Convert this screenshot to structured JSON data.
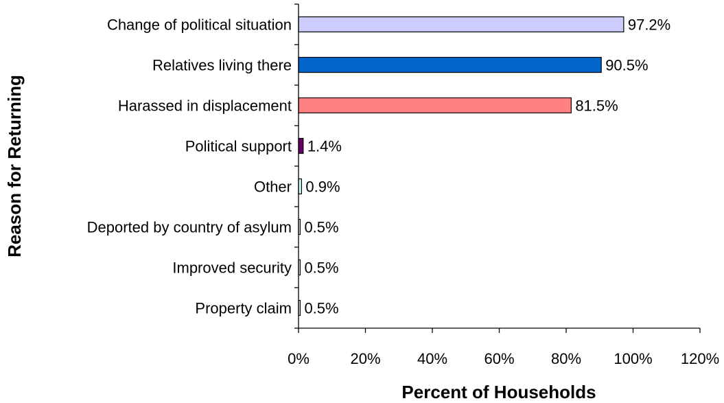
{
  "chart_data": {
    "type": "bar",
    "orientation": "horizontal",
    "title": "",
    "xlabel": "Percent of Households",
    "ylabel": "Reason for Returning",
    "xlim": [
      0,
      120
    ],
    "x_tick_labels": [
      "0%",
      "20%",
      "40%",
      "60%",
      "80%",
      "100%",
      "120%"
    ],
    "x_tick_values": [
      0,
      20,
      40,
      60,
      80,
      100,
      120
    ],
    "grid": false,
    "legend": "none",
    "categories": [
      "Change of political situation",
      "Relatives living there",
      "Harassed in displacement",
      "Political support",
      "Other",
      "Deported by country of asylum",
      "Improved security",
      "Property claim"
    ],
    "values": [
      97.2,
      90.5,
      81.5,
      1.4,
      0.9,
      0.5,
      0.5,
      0.5
    ],
    "data_labels": [
      "97.2%",
      "90.5%",
      "81.5%",
      "1.4%",
      "0.9%",
      "0.5%",
      "0.5%",
      "0.5%"
    ],
    "colors": [
      "#ccccff",
      "#0066cc",
      "#ff8080",
      "#660066",
      "#ccffff",
      "#ffffff",
      "#ffffff",
      "#ffffff"
    ]
  }
}
